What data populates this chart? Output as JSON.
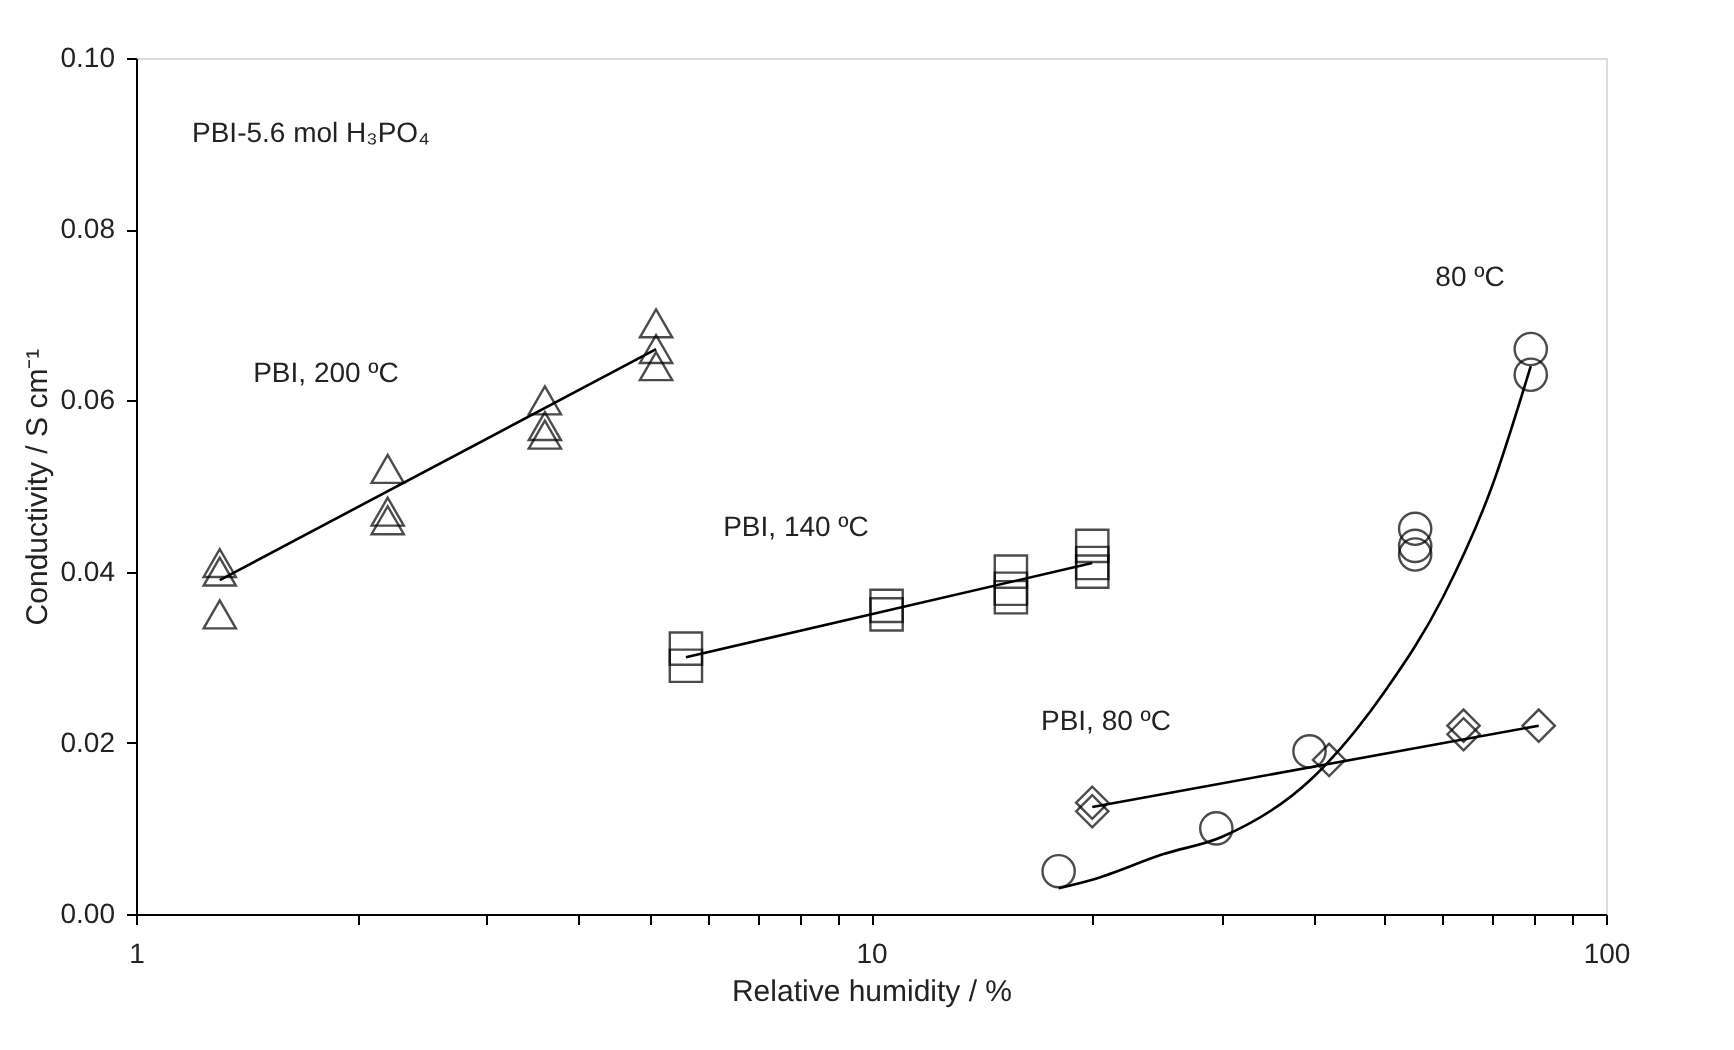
{
  "chart_data": {
    "type": "scatter",
    "xlabel": "Relative humidity / %",
    "ylabel": "Conductivity / S cm⁻¹",
    "log": "x",
    "xlim": [
      1,
      100
    ],
    "ylim": [
      0,
      0.1
    ],
    "xticks": [
      1,
      {
        "value": 2,
        "label": null
      },
      {
        "value": 3,
        "label": null
      },
      {
        "value": 4,
        "label": null
      },
      {
        "value": 5,
        "label": null
      },
      {
        "value": 6,
        "label": null
      },
      {
        "value": 7,
        "label": null
      },
      {
        "value": 8,
        "label": null
      },
      {
        "value": 9,
        "label": null
      },
      10,
      {
        "value": 20,
        "label": null
      },
      {
        "value": 30,
        "label": null
      },
      {
        "value": 40,
        "label": null
      },
      {
        "value": 50,
        "label": null
      },
      {
        "value": 60,
        "label": null
      },
      {
        "value": 70,
        "label": null
      },
      {
        "value": 80,
        "label": null
      },
      {
        "value": 90,
        "label": null
      },
      100
    ],
    "yticks": [
      {
        "value": 0,
        "label": "0.00"
      },
      {
        "value": 0.02,
        "label": "0.02"
      },
      {
        "value": 0.04,
        "label": "0.04"
      },
      {
        "value": 0.06,
        "label": "0.06"
      },
      {
        "value": 0.08,
        "label": "0.08"
      },
      {
        "value": 0.1,
        "label": "0.10"
      }
    ],
    "grid": false,
    "series": [
      {
        "marker": "triangle",
        "color": "#000000",
        "x": [
          1.3,
          1.3,
          1.3,
          2.2,
          2.2,
          2.2,
          3.6,
          3.6,
          3.6,
          5.1,
          5.1,
          5.1
        ],
        "values": [
          0.041,
          0.04,
          0.035,
          0.052,
          0.047,
          0.046,
          0.06,
          0.057,
          0.056,
          0.069,
          0.066,
          0.064
        ]
      },
      {
        "type": "line",
        "marker": "none",
        "color": "#000000",
        "x": [
          1.3,
          5.1
        ],
        "values": [
          0.039,
          0.066
        ]
      },
      {
        "marker": "square",
        "color": "#000000",
        "x": [
          5.6,
          5.6,
          10.5,
          10.5,
          15.5,
          15.5,
          15.5,
          20,
          20,
          20
        ],
        "values": [
          0.031,
          0.029,
          0.036,
          0.035,
          0.04,
          0.038,
          0.037,
          0.043,
          0.041,
          0.04
        ]
      },
      {
        "type": "line",
        "marker": "none",
        "color": "#000000",
        "x": [
          5.6,
          20
        ],
        "values": [
          0.03,
          0.041
        ]
      },
      {
        "marker": "diamond",
        "color": "#000000",
        "x": [
          20,
          20,
          42,
          64,
          64,
          81
        ],
        "values": [
          0.013,
          0.012,
          0.018,
          0.022,
          0.021,
          0.022
        ]
      },
      {
        "type": "line",
        "marker": "none",
        "color": "#000000",
        "x": [
          20,
          81
        ],
        "values": [
          0.0125,
          0.022
        ]
      },
      {
        "marker": "circle",
        "color": "#000000",
        "x": [
          18,
          29.5,
          39.5,
          55,
          55,
          55,
          79,
          79
        ],
        "values": [
          0.005,
          0.01,
          0.019,
          0.045,
          0.043,
          0.042,
          0.066,
          0.063
        ]
      },
      {
        "type": "line",
        "marker": "none",
        "color": "#000000",
        "x": [
          18,
          20,
          25,
          30,
          40,
          50,
          60,
          70,
          79
        ],
        "values": [
          0.003,
          0.004,
          0.007,
          0.009,
          0.016,
          0.026,
          0.037,
          0.05,
          0.064
        ]
      }
    ],
    "annotations": [
      "PBI-5.6 mol H₃PO₄",
      "PBI, 200 ºC",
      "PBI, 140 ºC",
      "PBI, 80 ºC",
      "80 ºC"
    ]
  }
}
